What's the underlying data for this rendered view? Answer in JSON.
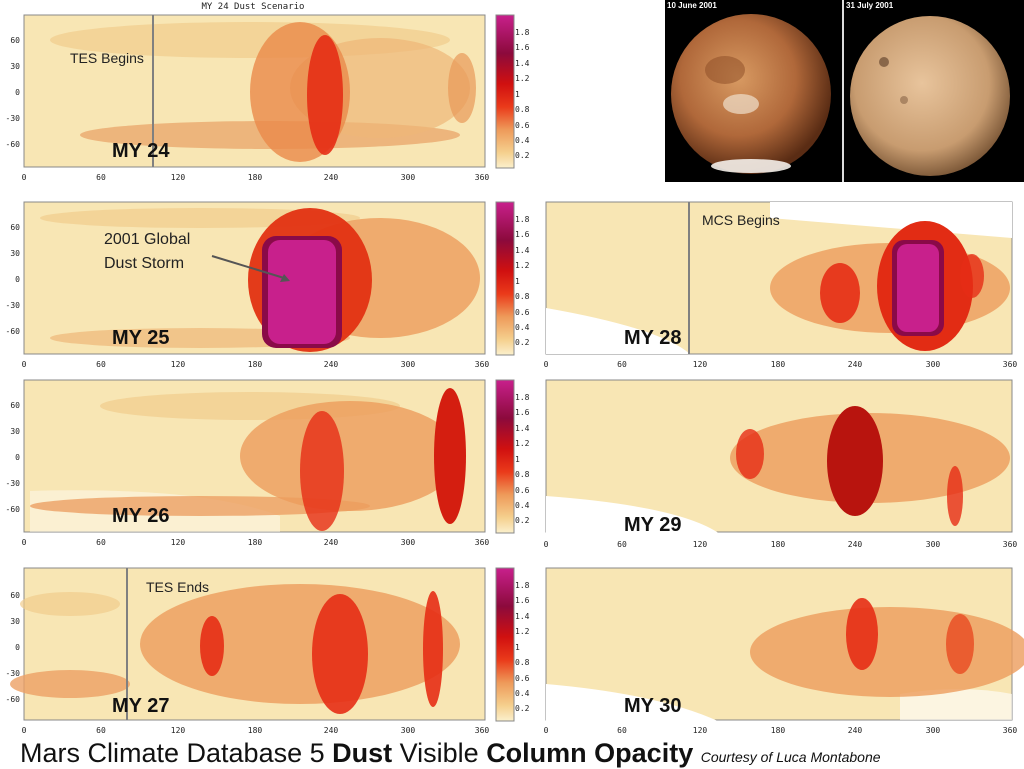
{
  "title": {
    "part1": "Mars Climate Database 5 ",
    "part2": "Dust",
    "part3": " Visible ",
    "part4": "Column Opacity",
    "credit": "Courtesy of Luca Montabone"
  },
  "top_plot_title": "MY 24 Dust Scenario",
  "photos": {
    "left_date": "10 June 2001",
    "right_date": "31 July 2001"
  },
  "colors": {
    "bg": "#f8e6b4",
    "low": "#f1cc8c",
    "mid": "#e89858",
    "high": "#e62d15",
    "max": "#c8208c"
  },
  "chart_data": [
    {
      "type": "heatmap",
      "title": "MY 24",
      "xlim": [
        0,
        360
      ],
      "ylim": [
        -90,
        90
      ],
      "x_ticks": [
        "0",
        "60",
        "120",
        "180",
        "240",
        "300",
        "360"
      ],
      "y_ticks": [
        "60",
        "30",
        "0",
        "-30",
        "-60"
      ],
      "colorbar_ticks": [
        "1.8",
        "1.6",
        "1.4",
        "1.2",
        "1",
        "0.8",
        "0.6",
        "0.4",
        "0.2"
      ],
      "annotation": "TES Begins",
      "marker_ls": 100,
      "max_opacity": 1.2,
      "peak_ls": 235
    },
    {
      "type": "heatmap",
      "title": "MY 25",
      "xlim": [
        0,
        360
      ],
      "ylim": [
        -90,
        90
      ],
      "x_ticks": [
        "0",
        "60",
        "120",
        "180",
        "240",
        "300",
        "360"
      ],
      "y_ticks": [
        "60",
        "30",
        "0",
        "-30",
        "-60"
      ],
      "colorbar_ticks": [
        "1.8",
        "1.6",
        "1.4",
        "1.2",
        "1",
        "0.8",
        "0.6",
        "0.4",
        "0.2"
      ],
      "annotation": "2001 Global Dust Storm",
      "annotation_lines": [
        "2001 Global",
        "Dust Storm"
      ],
      "max_opacity": 2.0,
      "peak_ls": 210
    },
    {
      "type": "heatmap",
      "title": "MY 26",
      "xlim": [
        0,
        360
      ],
      "ylim": [
        -90,
        90
      ],
      "x_ticks": [
        "0",
        "60",
        "120",
        "180",
        "240",
        "300",
        "360"
      ],
      "y_ticks": [
        "60",
        "30",
        "0",
        "-30",
        "-60"
      ],
      "colorbar_ticks": [
        "1.8",
        "1.6",
        "1.4",
        "1.2",
        "1",
        "0.8",
        "0.6",
        "0.4",
        "0.2"
      ],
      "max_opacity": 1.2,
      "peak_ls": 325
    },
    {
      "type": "heatmap",
      "title": "MY 27",
      "xlim": [
        0,
        360
      ],
      "ylim": [
        -90,
        90
      ],
      "x_ticks": [
        "0",
        "60",
        "120",
        "180",
        "240",
        "300",
        "360"
      ],
      "y_ticks": [
        "60",
        "30",
        "0",
        "-30",
        "-60"
      ],
      "colorbar_ticks": [
        "1.8",
        "1.6",
        "1.4",
        "1.2",
        "1",
        "0.8",
        "0.6",
        "0.4",
        "0.2"
      ],
      "annotation": "TES Ends",
      "marker_ls": 80,
      "max_opacity": 1.1,
      "peak_ls": 240
    },
    {
      "type": "heatmap",
      "title": "MY 28",
      "xlim": [
        0,
        360
      ],
      "ylim": [
        -90,
        90
      ],
      "x_ticks": [
        "0",
        "60",
        "120",
        "180",
        "240",
        "300",
        "360"
      ],
      "annotation": "MCS Begins",
      "marker_ls": 112,
      "max_opacity": 2.0,
      "peak_ls": 280
    },
    {
      "type": "heatmap",
      "title": "MY 29",
      "xlim": [
        0,
        360
      ],
      "ylim": [
        -90,
        90
      ],
      "x_ticks": [
        "0",
        "60",
        "120",
        "180",
        "240",
        "300",
        "360"
      ],
      "max_opacity": 1.3,
      "peak_ls": 240
    },
    {
      "type": "heatmap",
      "title": "MY 30",
      "xlim": [
        0,
        360
      ],
      "ylim": [
        -90,
        90
      ],
      "x_ticks": [
        "0",
        "60",
        "120",
        "180",
        "240",
        "300",
        "360"
      ],
      "max_opacity": 1.0,
      "peak_ls": 250
    }
  ]
}
